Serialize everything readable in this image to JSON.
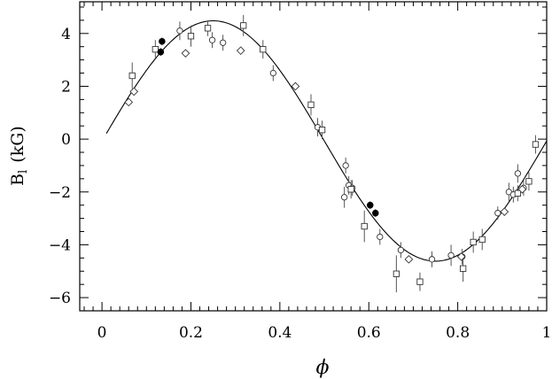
{
  "chart_data": {
    "type": "scatter",
    "title": "",
    "xlabel": "ϕ",
    "ylabel": "B",
    "ylabel_sub": "l",
    "ylabel_units": "(kG)",
    "xlim": [
      -0.05,
      1.0
    ],
    "ylim": [
      -6.5,
      5.2
    ],
    "x_ticks": [
      0,
      0.2,
      0.4,
      0.6,
      0.8,
      1
    ],
    "x_tick_labels": [
      "0",
      "0.2",
      "0.4",
      "0.6",
      "0.8",
      "1"
    ],
    "y_ticks": [
      -6,
      -4,
      -2,
      0,
      2,
      4
    ],
    "y_tick_labels": [
      "−6",
      "−4",
      "−2",
      "0",
      "2",
      "4"
    ],
    "grid": false,
    "model_curve": {
      "offset": -0.07,
      "amplitude": 4.55,
      "phase0": 0.0
    },
    "series": [
      {
        "marker": "circle-open",
        "points": [
          {
            "x": 0.175,
            "y": 4.1,
            "err": 0.35
          },
          {
            "x": 0.248,
            "y": 3.75,
            "err": 0.3
          },
          {
            "x": 0.272,
            "y": 3.65,
            "err": 0.3
          },
          {
            "x": 0.385,
            "y": 2.5,
            "err": 0.3
          },
          {
            "x": 0.485,
            "y": 0.45,
            "err": 0.35
          },
          {
            "x": 0.548,
            "y": -1.0,
            "err": 0.3
          },
          {
            "x": 0.545,
            "y": -2.2,
            "err": 0.4
          },
          {
            "x": 0.555,
            "y": -1.75,
            "err": 0.35
          },
          {
            "x": 0.563,
            "y": -1.85,
            "err": 0.3
          },
          {
            "x": 0.625,
            "y": -3.7,
            "err": 0.3
          },
          {
            "x": 0.672,
            "y": -4.2,
            "err": 0.3
          },
          {
            "x": 0.742,
            "y": -4.55,
            "err": 0.3
          },
          {
            "x": 0.785,
            "y": -4.4,
            "err": 0.4
          },
          {
            "x": 0.81,
            "y": -4.45,
            "err": 0.3
          },
          {
            "x": 0.89,
            "y": -2.8,
            "err": 0.25
          },
          {
            "x": 0.915,
            "y": -2.0,
            "err": 0.35
          },
          {
            "x": 0.925,
            "y": -2.1,
            "err": 0.3
          },
          {
            "x": 0.935,
            "y": -1.3,
            "err": 0.35
          },
          {
            "x": 0.948,
            "y": -1.85,
            "err": 0.3
          }
        ]
      },
      {
        "marker": "square-open",
        "points": [
          {
            "x": 0.068,
            "y": 2.4,
            "err": 0.5
          },
          {
            "x": 0.12,
            "y": 3.4,
            "err": 0.35
          },
          {
            "x": 0.2,
            "y": 3.9,
            "err": 0.4
          },
          {
            "x": 0.238,
            "y": 4.2,
            "err": 0.3
          },
          {
            "x": 0.318,
            "y": 4.3,
            "err": 0.4
          },
          {
            "x": 0.362,
            "y": 3.4,
            "err": 0.35
          },
          {
            "x": 0.47,
            "y": 1.3,
            "err": 0.4
          },
          {
            "x": 0.495,
            "y": 0.35,
            "err": 0.35
          },
          {
            "x": 0.56,
            "y": -1.9,
            "err": 0.35
          },
          {
            "x": 0.59,
            "y": -3.3,
            "err": 0.6
          },
          {
            "x": 0.662,
            "y": -5.1,
            "err": 0.7
          },
          {
            "x": 0.715,
            "y": -5.4,
            "err": 0.35
          },
          {
            "x": 0.812,
            "y": -4.9,
            "err": 0.5
          },
          {
            "x": 0.835,
            "y": -3.9,
            "err": 0.4
          },
          {
            "x": 0.855,
            "y": -3.8,
            "err": 0.4
          },
          {
            "x": 0.935,
            "y": -2.05,
            "err": 0.3
          },
          {
            "x": 0.96,
            "y": -1.6,
            "err": 0.35
          },
          {
            "x": 0.975,
            "y": -0.2,
            "err": 0.35
          }
        ]
      },
      {
        "marker": "diamond-open",
        "points": [
          {
            "x": 0.06,
            "y": 1.4,
            "err": 0
          },
          {
            "x": 0.072,
            "y": 1.8,
            "err": 0
          },
          {
            "x": 0.188,
            "y": 3.25,
            "err": 0
          },
          {
            "x": 0.312,
            "y": 3.35,
            "err": 0
          },
          {
            "x": 0.435,
            "y": 2.0,
            "err": 0
          },
          {
            "x": 0.69,
            "y": -4.55,
            "err": 0
          },
          {
            "x": 0.808,
            "y": -4.45,
            "err": 0
          },
          {
            "x": 0.905,
            "y": -2.75,
            "err": 0
          },
          {
            "x": 0.945,
            "y": -1.9,
            "err": 0
          }
        ]
      },
      {
        "marker": "circle-filled",
        "points": [
          {
            "x": 0.135,
            "y": 3.7,
            "err": 0.15
          },
          {
            "x": 0.132,
            "y": 3.3,
            "err": 0.15
          },
          {
            "x": 0.603,
            "y": -2.5,
            "err": 0.15
          },
          {
            "x": 0.615,
            "y": -2.8,
            "err": 0.15
          }
        ]
      }
    ]
  }
}
